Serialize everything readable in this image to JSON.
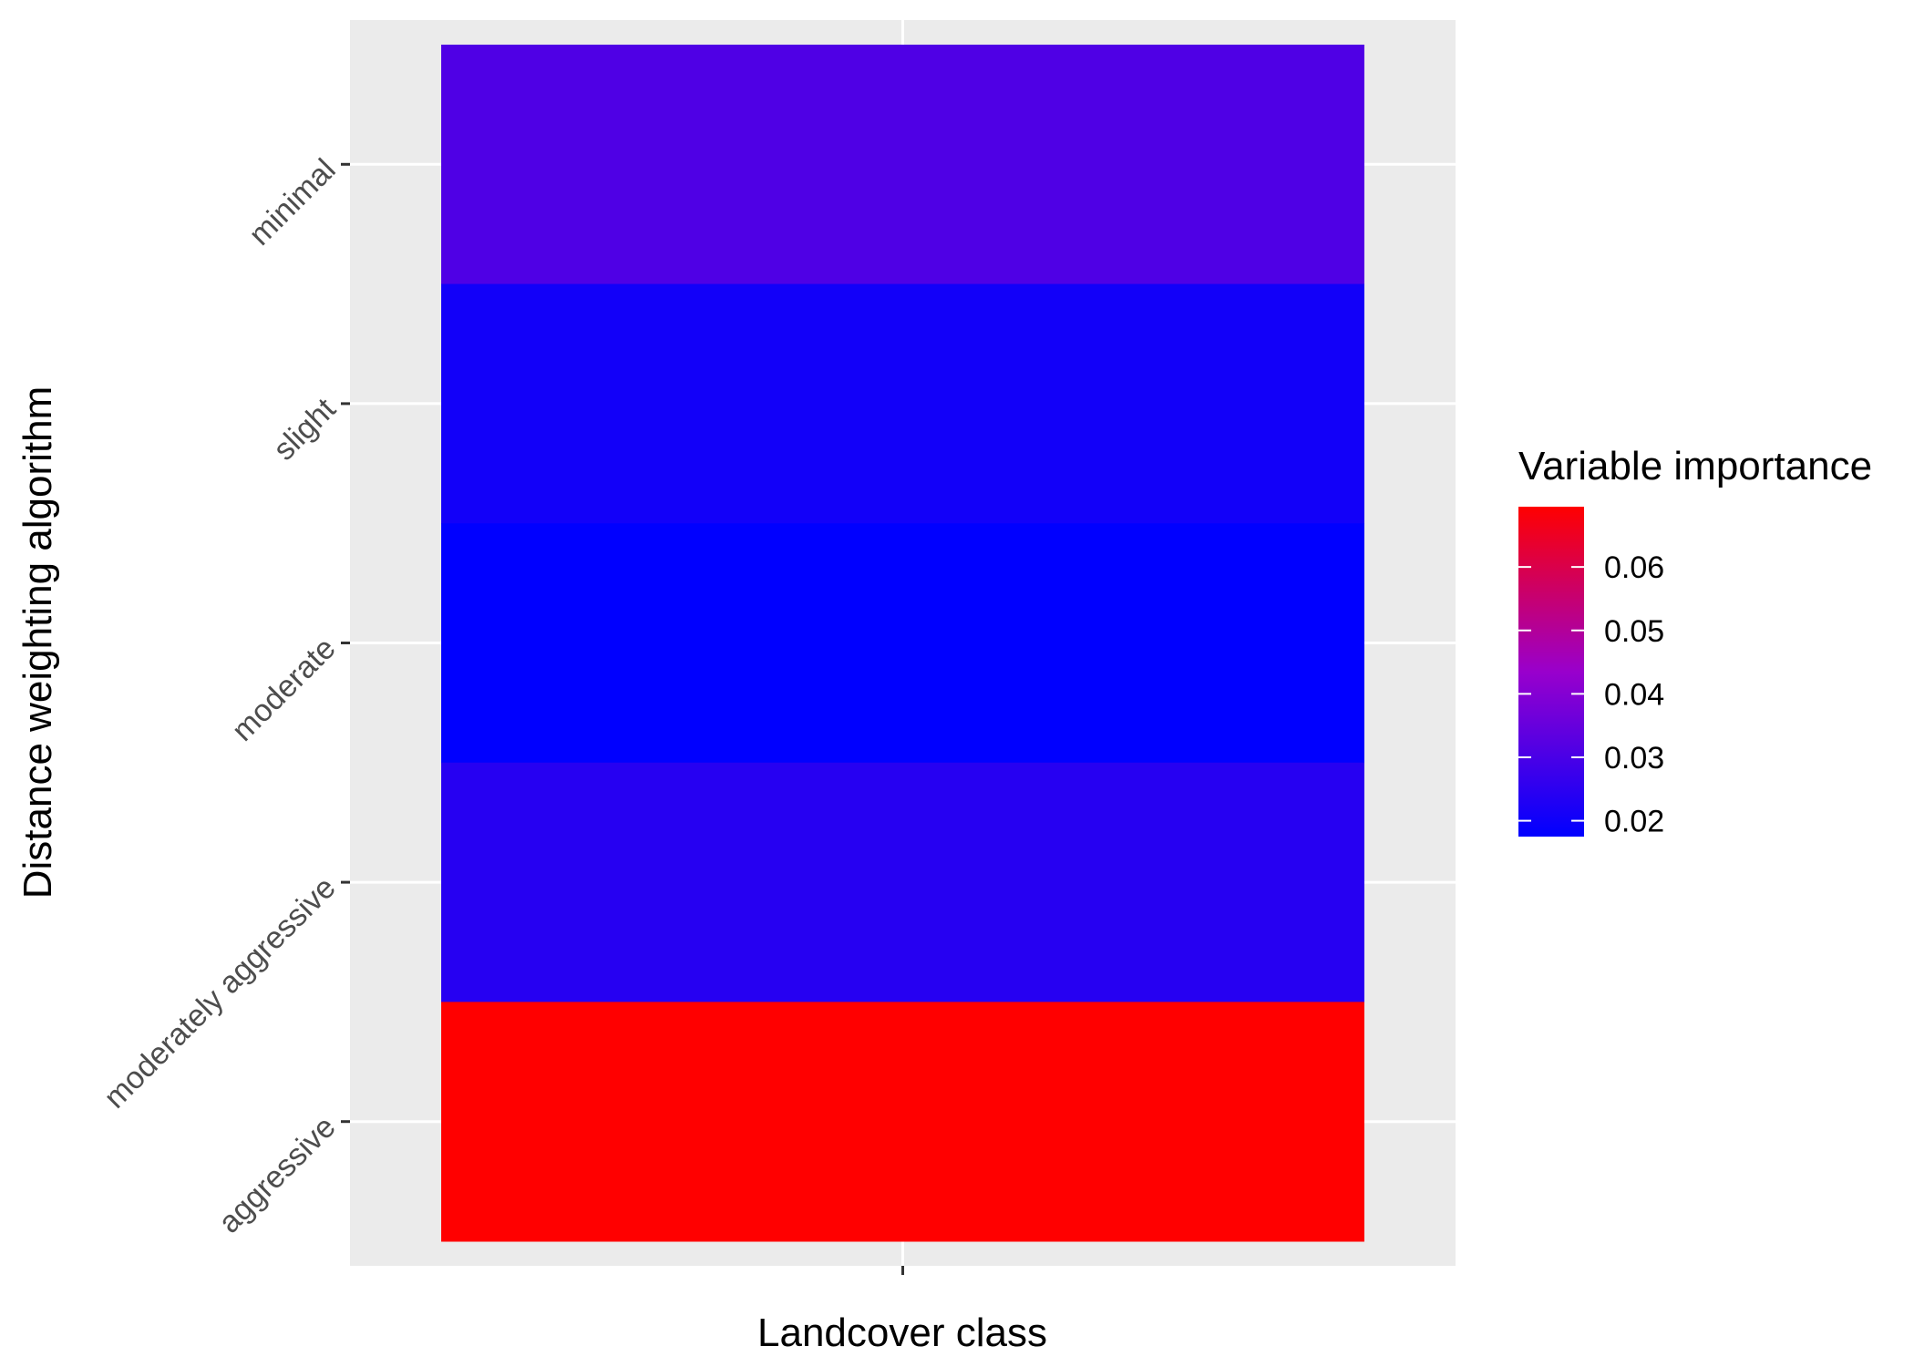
{
  "chart_data": {
    "type": "heatmap",
    "xlabel": "Landcover class",
    "ylabel": "Distance weighting algorithm",
    "x_categories": [
      ""
    ],
    "y_categories": [
      "aggressive",
      "moderately aggressive",
      "moderate",
      "slight",
      "minimal"
    ],
    "values": [
      {
        "x": "",
        "y": "minimal",
        "value": 0.031
      },
      {
        "x": "",
        "y": "slight",
        "value": 0.0205
      },
      {
        "x": "",
        "y": "moderate",
        "value": 0.0175
      },
      {
        "x": "",
        "y": "moderately aggressive",
        "value": 0.024
      },
      {
        "x": "",
        "y": "aggressive",
        "value": 0.0695
      }
    ],
    "legend": {
      "title": "Variable importance",
      "placement": "right",
      "ticks": [
        0.02,
        0.03,
        0.04,
        0.05,
        0.06
      ],
      "tick_labels": [
        "0.02",
        "0.03",
        "0.04",
        "0.05",
        "0.06"
      ],
      "range": [
        0.0175,
        0.0695
      ],
      "low_color": "#0000ff",
      "high_color": "#ff0000"
    },
    "colors": {
      "panel_background": "#ebebeb",
      "grid": "#ffffff"
    }
  }
}
